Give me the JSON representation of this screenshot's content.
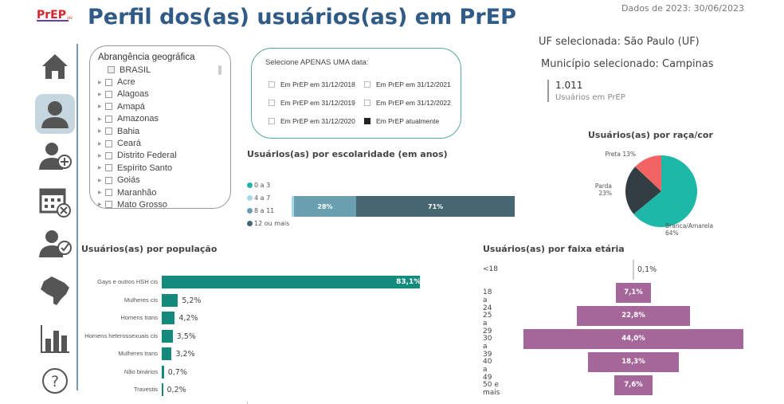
{
  "header": {
    "logo_text": "PrEP HIV",
    "title": "Perfil dos(as) usuários(as) em PrEP",
    "date_info": "Dados de 2023: 30/06/2023"
  },
  "sidebar": {
    "items": [
      {
        "icon": "home-icon"
      },
      {
        "icon": "user-icon",
        "active": true
      },
      {
        "icon": "user-add-icon"
      },
      {
        "icon": "calendar-cancel-icon"
      },
      {
        "icon": "user-check-icon"
      },
      {
        "icon": "brazil-map-icon"
      },
      {
        "icon": "bar-chart-icon"
      },
      {
        "icon": "help-icon"
      }
    ]
  },
  "geo_filter": {
    "title": "Abrangência geográfica",
    "items": [
      "BRASIL",
      "Acre",
      "Alagoas",
      "Amapá",
      "Amazonas",
      "Bahia",
      "Ceará",
      "Distrito Federal",
      "Espírito Santo",
      "Goiás",
      "Maranhão",
      "Mato Grosso"
    ]
  },
  "date_filter": {
    "title": "Selecione APENAS UMA data:",
    "options": [
      {
        "label": "Em PrEP em 31/12/2018",
        "checked": false
      },
      {
        "label": "Em PrEP em 31/12/2019",
        "checked": false
      },
      {
        "label": "Em PrEP em 31/12/2020",
        "checked": false
      },
      {
        "label": "Em PrEP em 31/12/2021",
        "checked": false
      },
      {
        "label": "Em PrEP em 31/12/2022",
        "checked": false
      },
      {
        "label": "Em PrEP atualmente",
        "checked": true
      }
    ]
  },
  "selection": {
    "uf": "UF selecionada: São Paulo (UF)",
    "municipio": "Município selecionado: Campinas",
    "kpi_value": "1.011",
    "kpi_label": "Usuários em PrEP"
  },
  "chart_data": [
    {
      "type": "bar",
      "title": "Usuários(as) por escolaridade (em anos)",
      "stacked": true,
      "orientation": "horizontal",
      "series": [
        {
          "name": "0 a 3",
          "value": 0,
          "label": "",
          "color": "#1fb5a8"
        },
        {
          "name": "4 a 7",
          "value": 1,
          "label": "",
          "color": "#a6d8e6"
        },
        {
          "name": "8 a 11",
          "value": 28,
          "label": "28%",
          "color": "#6a9fb0"
        },
        {
          "name": "12 ou mais",
          "value": 71,
          "label": "71%",
          "color": "#466672"
        }
      ],
      "legend": "left"
    },
    {
      "type": "pie",
      "title": "Usuários(as) por raça/cor",
      "slices": [
        {
          "name": "Branca/Amarela",
          "value": 64,
          "label": "Branca/Amarela",
          "pct": "64%",
          "color": "#1db8a8"
        },
        {
          "name": "Parda",
          "value": 23,
          "label": "Parda",
          "pct": "23%",
          "color": "#323e42"
        },
        {
          "name": "Preta",
          "value": 13,
          "label": "Preta 13%",
          "pct": "",
          "color": "#f26463"
        }
      ]
    },
    {
      "type": "bar",
      "title": "Usuários(as) por população",
      "orientation": "horizontal",
      "color": "#128a7c",
      "categories": [
        "Gays e outros HSH cis",
        "Mulheres cis",
        "Homens trans",
        "Homens heterossexuais cis",
        "Mulheres trans",
        "Não binários",
        "Travestis"
      ],
      "values": [
        83.1,
        5.2,
        4.2,
        3.5,
        3.2,
        0.7,
        0.2
      ],
      "labels": [
        "83,1%",
        "5,2%",
        "4,2%",
        "3,5%",
        "3,2%",
        "0,7%",
        "0,2%"
      ]
    },
    {
      "type": "bar",
      "title": "Usuários(as) por faixa etária",
      "orientation": "horizontal",
      "centered": true,
      "color": "#a5679a",
      "categories": [
        "<18",
        "18 a 24",
        "25 a 29",
        "30 a 39",
        "40 a 49",
        "50 e mais"
      ],
      "values": [
        0.1,
        7.1,
        22.8,
        44.0,
        18.3,
        7.6
      ],
      "labels": [
        "0,1%",
        "7,1%",
        "22,8%",
        "44,0%",
        "18,3%",
        "7,6%"
      ]
    }
  ]
}
